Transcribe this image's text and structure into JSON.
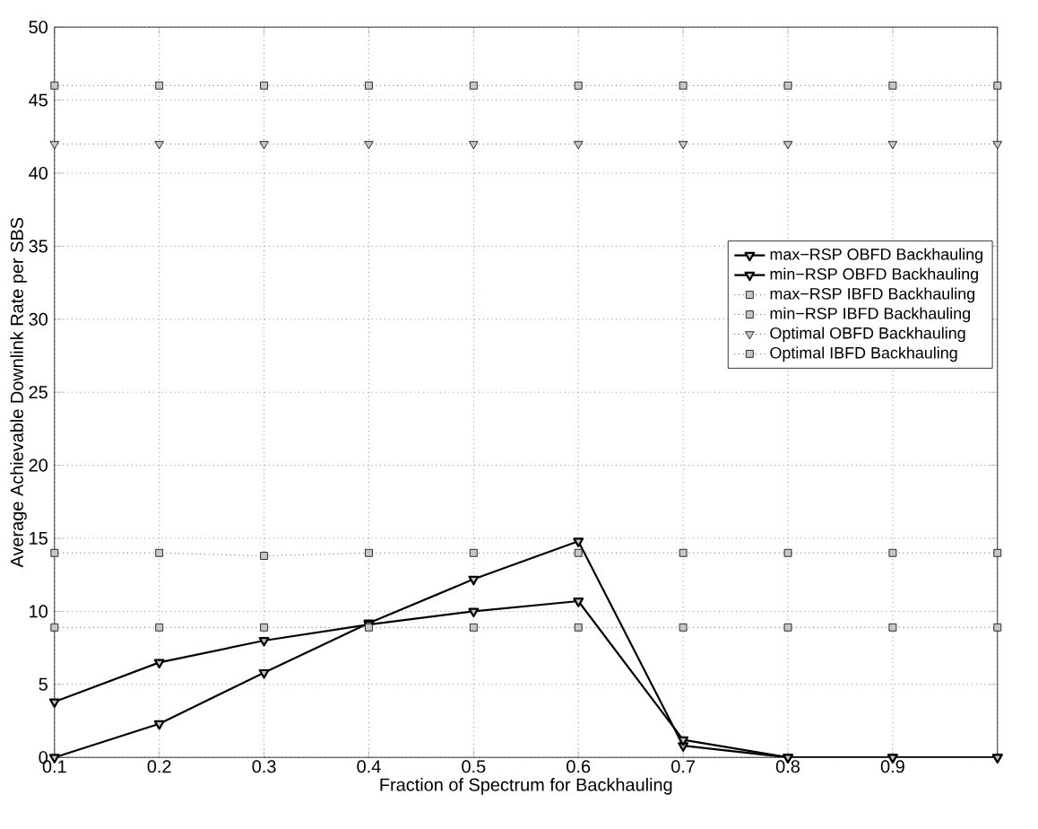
{
  "chart_data": {
    "type": "line",
    "xlabel": "Fraction of Spectrum for Backhauling",
    "ylabel": "Average Achievable Downlink Rate per SBS",
    "x": [
      0.1,
      0.2,
      0.3,
      0.4,
      0.5,
      0.6,
      0.7,
      0.8,
      0.9,
      1.0
    ],
    "series": [
      {
        "name": "max−RSP OBFD Backhauling",
        "color": "#000000",
        "marker": "triangle",
        "line_style": "solid",
        "values": [
          0,
          2.3,
          5.8,
          9.2,
          12.2,
          14.8,
          0.8,
          0,
          0,
          0
        ]
      },
      {
        "name": "min−RSP OBFD Backhauling",
        "color": "#000000",
        "marker": "triangle",
        "line_style": "solid",
        "values": [
          3.8,
          6.5,
          8,
          9.1,
          10,
          10.7,
          1.2,
          0,
          0,
          0
        ]
      },
      {
        "name": "max−RSP IBFD Backhauling",
        "color": "#000000",
        "marker": "square",
        "line_style": "dotted",
        "values": [
          14,
          14,
          13.8,
          14,
          14,
          14,
          14,
          14,
          14,
          14
        ]
      },
      {
        "name": "min−RSP IBFD Backhauling",
        "color": "#000000",
        "marker": "square",
        "line_style": "dotted",
        "values": [
          8.9,
          8.9,
          8.9,
          8.9,
          8.9,
          8.9,
          8.9,
          8.9,
          8.9,
          8.9
        ]
      },
      {
        "name": "Optimal OBFD Backhauling",
        "color": "#000000",
        "marker": "triangle",
        "line_style": "dotted",
        "values": [
          42,
          42,
          42,
          42,
          42,
          42,
          42,
          42,
          42,
          42
        ]
      },
      {
        "name": "Optimal IBFD Backhauling",
        "color": "#000000",
        "marker": "square",
        "line_style": "dotted",
        "values": [
          46,
          46,
          46,
          46,
          46,
          46,
          46,
          46,
          46,
          46
        ]
      }
    ],
    "xlim": [
      0.1,
      1.0
    ],
    "ylim": [
      0,
      50
    ],
    "xticks": [
      0.1,
      0.2,
      0.3,
      0.4,
      0.5,
      0.6,
      0.7,
      0.8,
      0.9,
      {
        "value": 1.0,
        "label": null
      }
    ],
    "yticks": [
      0,
      5,
      10,
      15,
      20,
      25,
      30,
      35,
      40,
      45,
      50
    ],
    "grid": true,
    "legend": "right"
  }
}
